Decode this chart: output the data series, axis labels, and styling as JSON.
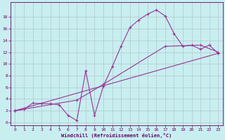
{
  "background_color": "#c8eef0",
  "grid_color": "#b0c8c8",
  "line_color": "#993399",
  "marker": "+",
  "xlabel": "Windchill (Refroidissement éolien,°C)",
  "xlabel_color": "#660066",
  "tick_color": "#660066",
  "xlim": [
    -0.5,
    23.5
  ],
  "ylim": [
    -0.5,
    20.5
  ],
  "xticks": [
    0,
    1,
    2,
    3,
    4,
    5,
    6,
    7,
    8,
    9,
    10,
    11,
    12,
    13,
    14,
    15,
    16,
    17,
    18,
    19,
    20,
    21,
    22,
    23
  ],
  "yticks": [
    0,
    2,
    4,
    6,
    8,
    10,
    12,
    14,
    16,
    18
  ],
  "line1_x": [
    0,
    1,
    2,
    3,
    4,
    5,
    6,
    7,
    8,
    9,
    10,
    11,
    12,
    13,
    14,
    15,
    16,
    17,
    18,
    19,
    20,
    21,
    22,
    23
  ],
  "line1_y": [
    2.0,
    2.2,
    3.3,
    3.2,
    3.2,
    3.0,
    1.2,
    0.3,
    8.8,
    1.2,
    6.2,
    9.5,
    13.0,
    16.2,
    17.5,
    18.5,
    19.2,
    18.2,
    15.2,
    13.0,
    13.2,
    12.5,
    13.2,
    11.8
  ],
  "line2_x": [
    0,
    23
  ],
  "line2_y": [
    2.0,
    11.8
  ],
  "line3_x": [
    0,
    7,
    10,
    17,
    21,
    23
  ],
  "line3_y": [
    2.0,
    3.8,
    6.5,
    13.0,
    13.2,
    12.0
  ],
  "figsize": [
    3.2,
    2.0
  ],
  "dpi": 100
}
